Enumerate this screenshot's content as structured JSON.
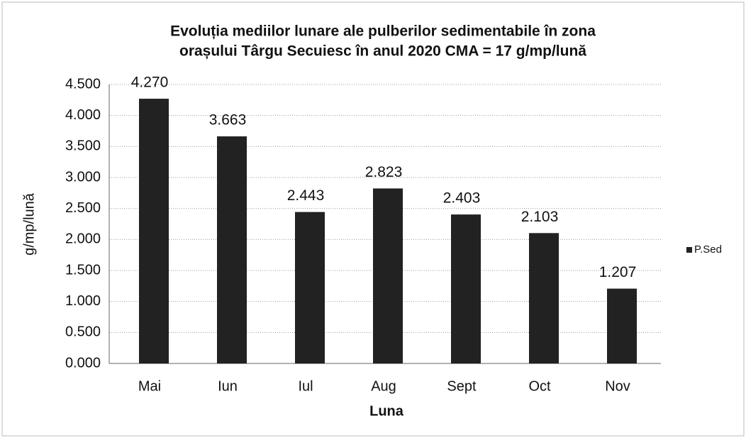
{
  "chart_data": {
    "type": "bar",
    "title": [
      "Evoluția mediilor lunare ale pulberilor sedimentabile în zona",
      "orașului Târgu Secuiesc în anul 2020    CMA = 17 g/mp/lună"
    ],
    "x_label": "Luna",
    "y_label": "g/mp/lună",
    "categories": [
      "Mai",
      "Iun",
      "Iul",
      "Aug",
      "Sept",
      "Oct",
      "Nov"
    ],
    "series": [
      {
        "name": "P.Sed",
        "color": "#222222",
        "values": [
          4.27,
          3.663,
          2.443,
          2.823,
          2.403,
          2.103,
          1.207
        ],
        "value_labels": [
          "4.270",
          "3.663",
          "2.443",
          "2.823",
          "2.403",
          "2.103",
          "1.207"
        ]
      }
    ],
    "ylim": [
      0,
      4.5
    ],
    "yticks": [
      {
        "value": 0,
        "label": "0.000"
      },
      {
        "value": 0.5,
        "label": "0.500"
      },
      {
        "value": 1,
        "label": "1.000"
      },
      {
        "value": 1.5,
        "label": "1.500"
      },
      {
        "value": 2,
        "label": "2.000"
      },
      {
        "value": 2.5,
        "label": "2.500"
      },
      {
        "value": 3,
        "label": "3.000"
      },
      {
        "value": 3.5,
        "label": "3.500"
      },
      {
        "value": 4,
        "label": "4.000"
      },
      {
        "value": 4.5,
        "label": "4.500"
      }
    ],
    "grid": true,
    "legend": "right"
  }
}
